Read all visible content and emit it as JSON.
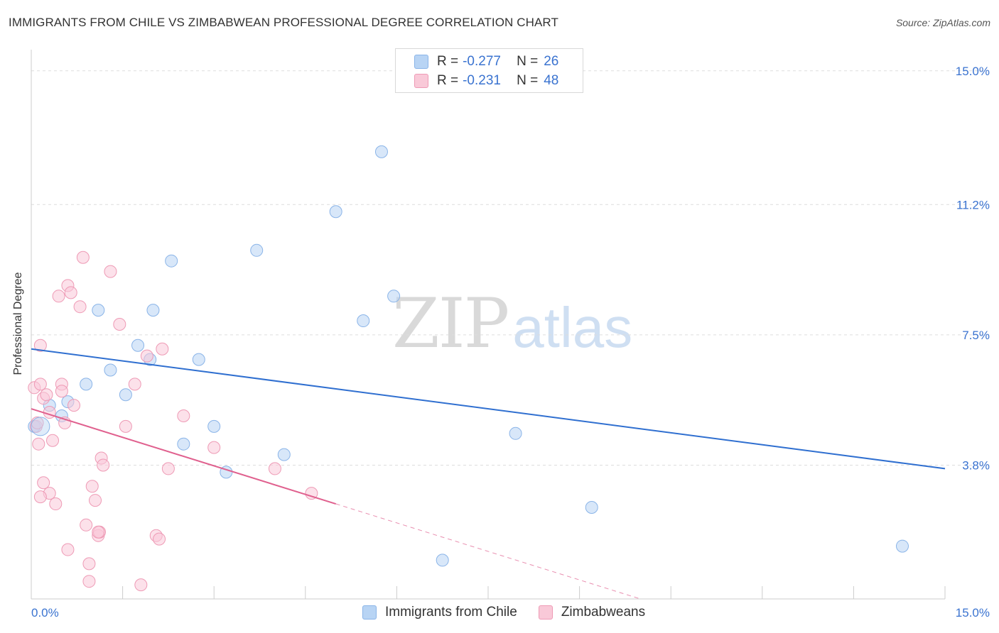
{
  "title": "IMMIGRANTS FROM CHILE VS ZIMBABWEAN PROFESSIONAL DEGREE CORRELATION CHART",
  "source": "Source: ZipAtlas.com",
  "watermark": {
    "zip": "ZIP",
    "atlas": "atlas"
  },
  "legend": {
    "series1": {
      "r_label": "R =",
      "r_value": "-0.277",
      "n_label": "N =",
      "n_value": "26"
    },
    "series2": {
      "r_label": "R =",
      "r_value": "-0.231",
      "n_label": "N =",
      "n_value": "48"
    }
  },
  "colors": {
    "blue_fill": "#b8d4f4",
    "blue_stroke": "#8ab4e8",
    "blue_line": "#2f6fd0",
    "pink_fill": "#f9c9d8",
    "pink_stroke": "#ee9ab5",
    "pink_line": "#e0608e",
    "grid": "#dddddd",
    "axis_text": "#3a73d0"
  },
  "chart_data": {
    "type": "scatter",
    "title": "IMMIGRANTS FROM CHILE VS ZIMBABWEAN PROFESSIONAL DEGREE CORRELATION CHART",
    "xlabel": "",
    "ylabel": "Professional Degree",
    "xlim": [
      0,
      15
    ],
    "ylim": [
      0,
      15.6
    ],
    "x_tick_labels": [
      "0.0%",
      "15.0%"
    ],
    "y_ticks": [
      3.8,
      7.5,
      11.2,
      15.0
    ],
    "y_tick_labels": [
      "3.8%",
      "7.5%",
      "11.2%",
      "15.0%"
    ],
    "series": [
      {
        "name": "Immigrants from Chile",
        "color": "blue",
        "points": [
          [
            0.05,
            4.9
          ],
          [
            0.3,
            5.5
          ],
          [
            0.5,
            5.2
          ],
          [
            0.6,
            5.6
          ],
          [
            0.9,
            6.1
          ],
          [
            1.1,
            8.2
          ],
          [
            1.3,
            6.5
          ],
          [
            1.55,
            5.8
          ],
          [
            1.75,
            7.2
          ],
          [
            1.95,
            6.8
          ],
          [
            2.0,
            8.2
          ],
          [
            2.3,
            9.6
          ],
          [
            2.5,
            4.4
          ],
          [
            2.75,
            6.8
          ],
          [
            3.0,
            4.9
          ],
          [
            3.2,
            3.6
          ],
          [
            3.7,
            9.9
          ],
          [
            4.15,
            4.1
          ],
          [
            5.0,
            11.0
          ],
          [
            5.45,
            7.9
          ],
          [
            5.75,
            12.7
          ],
          [
            5.95,
            8.6
          ],
          [
            6.75,
            1.1
          ],
          [
            7.95,
            4.7
          ],
          [
            9.2,
            2.6
          ],
          [
            14.3,
            1.5
          ]
        ],
        "trend": {
          "x": [
            0,
            15
          ],
          "y": [
            7.1,
            3.7
          ]
        }
      },
      {
        "name": "Zimbabweans",
        "color": "pink",
        "points": [
          [
            0.05,
            6.0
          ],
          [
            0.08,
            4.9
          ],
          [
            0.1,
            5.0
          ],
          [
            0.12,
            4.4
          ],
          [
            0.15,
            6.1
          ],
          [
            0.15,
            7.2
          ],
          [
            0.2,
            5.7
          ],
          [
            0.25,
            5.8
          ],
          [
            0.3,
            5.3
          ],
          [
            0.35,
            4.5
          ],
          [
            0.2,
            3.3
          ],
          [
            0.3,
            3.0
          ],
          [
            0.4,
            2.7
          ],
          [
            0.45,
            8.6
          ],
          [
            0.5,
            6.1
          ],
          [
            0.55,
            5.0
          ],
          [
            0.6,
            8.9
          ],
          [
            0.65,
            8.7
          ],
          [
            0.5,
            5.9
          ],
          [
            0.7,
            5.5
          ],
          [
            0.8,
            8.3
          ],
          [
            0.85,
            9.7
          ],
          [
            0.9,
            2.1
          ],
          [
            0.95,
            1.0
          ],
          [
            0.95,
            0.5
          ],
          [
            1.0,
            3.2
          ],
          [
            1.05,
            2.8
          ],
          [
            1.1,
            1.8
          ],
          [
            1.12,
            1.9
          ],
          [
            1.15,
            4.0
          ],
          [
            1.18,
            3.8
          ],
          [
            1.3,
            9.3
          ],
          [
            1.45,
            7.8
          ],
          [
            1.55,
            4.9
          ],
          [
            1.7,
            6.1
          ],
          [
            1.8,
            0.4
          ],
          [
            1.9,
            6.9
          ],
          [
            2.05,
            1.8
          ],
          [
            2.1,
            1.7
          ],
          [
            2.15,
            7.1
          ],
          [
            2.25,
            3.7
          ],
          [
            2.5,
            5.2
          ],
          [
            3.0,
            4.3
          ],
          [
            4.0,
            3.7
          ],
          [
            4.6,
            3.0
          ],
          [
            0.15,
            2.9
          ],
          [
            0.6,
            1.4
          ],
          [
            1.1,
            1.9
          ]
        ],
        "trend": {
          "x": [
            0,
            5.0
          ],
          "y": [
            5.4,
            2.7
          ]
        },
        "trend_extension": {
          "x": [
            5.0,
            10.0
          ],
          "y": [
            2.7,
            0.0
          ]
        }
      }
    ],
    "legend": [
      "Immigrants from Chile",
      "Zimbabweans"
    ]
  }
}
